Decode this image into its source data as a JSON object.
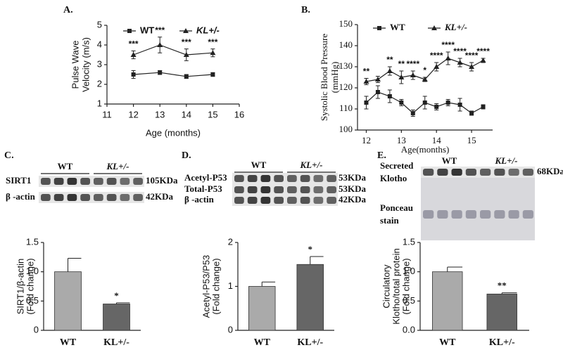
{
  "chart_data": [
    {
      "type": "line",
      "panel_label": "A.",
      "xlabel": "Age (months)",
      "ylabel": [
        "Pulse Wave",
        "Velocity (m/s)"
      ],
      "x": [
        12,
        13,
        14,
        15
      ],
      "xlim": [
        11,
        16
      ],
      "xticks": [
        11,
        12,
        13,
        14,
        15,
        16
      ],
      "ylim": [
        1,
        5
      ],
      "yticks": [
        1,
        2,
        3,
        4,
        5
      ],
      "series": [
        {
          "name": "WT",
          "color": "#222222",
          "marker": "square",
          "values": [
            2.5,
            2.6,
            2.4,
            2.5
          ],
          "errors": [
            0.2,
            0.1,
            0.1,
            0.1
          ]
        },
        {
          "name": "KL+/-",
          "color": "#222222",
          "marker": "triangle",
          "values": [
            3.5,
            4.0,
            3.5,
            3.6
          ],
          "errors": [
            0.2,
            0.4,
            0.3,
            0.2
          ],
          "annotations": [
            "***",
            "***",
            "***",
            "***"
          ]
        }
      ]
    },
    {
      "type": "line",
      "panel_label": "B.",
      "xlabel": "Age(months)",
      "ylabel": [
        "Systolic Blood Pressure",
        "(mmHg)"
      ],
      "x": [
        12,
        12.33,
        12.67,
        13,
        13.33,
        13.67,
        14,
        14.33,
        14.67,
        15,
        15.33
      ],
      "xlim": [
        11.75,
        15.6
      ],
      "xticks": [
        12,
        13,
        14,
        15
      ],
      "ylim": [
        100,
        150
      ],
      "yticks": [
        100,
        110,
        120,
        130,
        140,
        150
      ],
      "series": [
        {
          "name": "WT",
          "color": "#222222",
          "marker": "square",
          "values": [
            113,
            118,
            116,
            113,
            108,
            113,
            111,
            113,
            112,
            108,
            111
          ],
          "errors": [
            3,
            3,
            3,
            1.5,
            1.5,
            3,
            1.5,
            1.5,
            3,
            1,
            1
          ]
        },
        {
          "name": "KL+/-",
          "color": "#222222",
          "marker": "triangle",
          "values": [
            123,
            124,
            128,
            125,
            126,
            124,
            130,
            134,
            132,
            130,
            133
          ],
          "errors": [
            1.5,
            1.5,
            2,
            3,
            2,
            1,
            2,
            3,
            2,
            2,
            1
          ],
          "annotations": [
            "**",
            null,
            "**",
            "**",
            "****",
            "*",
            "****",
            "****",
            "****",
            "****",
            "****"
          ]
        }
      ]
    },
    {
      "type": "bar",
      "panel_label": "C.",
      "ylabel": [
        "SIRT1/β-actin",
        "(Fold change)"
      ],
      "categories": [
        "WT",
        "KL+/-"
      ],
      "values": [
        1.0,
        0.45
      ],
      "errors": [
        0.23,
        0.02
      ],
      "colors": [
        "#aaaaaa",
        "#666666"
      ],
      "annotations": [
        null,
        "*"
      ],
      "ylim": [
        0,
        1.5
      ],
      "yticks": [
        0,
        0.5,
        {
          "value": 1,
          "label": "1.0"
        },
        1.5
      ],
      "blot": {
        "groups": [
          "WT",
          "KL+/-"
        ],
        "rows": [
          {
            "label": "SIRT1",
            "size": "105KDa"
          },
          {
            "label": "β -actin",
            "size": "42KDa"
          }
        ]
      }
    },
    {
      "type": "bar",
      "panel_label": "D.",
      "ylabel": [
        "Acetyl-P53/P53",
        "(Fold change)"
      ],
      "categories": [
        "WT",
        "KL+/-"
      ],
      "values": [
        1.0,
        1.5
      ],
      "errors": [
        0.1,
        0.18
      ],
      "colors": [
        "#aaaaaa",
        "#666666"
      ],
      "annotations": [
        null,
        "*"
      ],
      "ylim": [
        0,
        2
      ],
      "yticks": [
        0,
        1,
        2
      ],
      "blot": {
        "groups": [
          "WT",
          "KL+/-"
        ],
        "rows": [
          {
            "label": "Acetyl-P53",
            "size": "53KDa"
          },
          {
            "label": "Total-P53",
            "size": "53KDa"
          },
          {
            "label": "β -actin",
            "size": "42KDa"
          }
        ]
      }
    },
    {
      "type": "bar",
      "panel_label": "E.",
      "ylabel": [
        "Circulatory",
        "Klotho/total protein",
        "(Fold change)"
      ],
      "categories": [
        "WT",
        "KL+/-"
      ],
      "values": [
        1.0,
        0.62
      ],
      "errors": [
        0.08,
        0.02
      ],
      "colors": [
        "#aaaaaa",
        "#666666"
      ],
      "annotations": [
        null,
        "**"
      ],
      "ylim": [
        0,
        1.5
      ],
      "yticks": [
        {
          "value": 0,
          "label": "0.0"
        },
        0.5,
        {
          "value": 1,
          "label": "1.0"
        },
        1.5
      ],
      "blot": {
        "groups": [
          "WT",
          "KL+/-"
        ],
        "rows": [
          {
            "label": [
              "Secreted",
              "Klotho"
            ],
            "size": "68KDa"
          },
          {
            "label": [
              "Ponceau",
              "stain"
            ]
          }
        ]
      }
    }
  ]
}
